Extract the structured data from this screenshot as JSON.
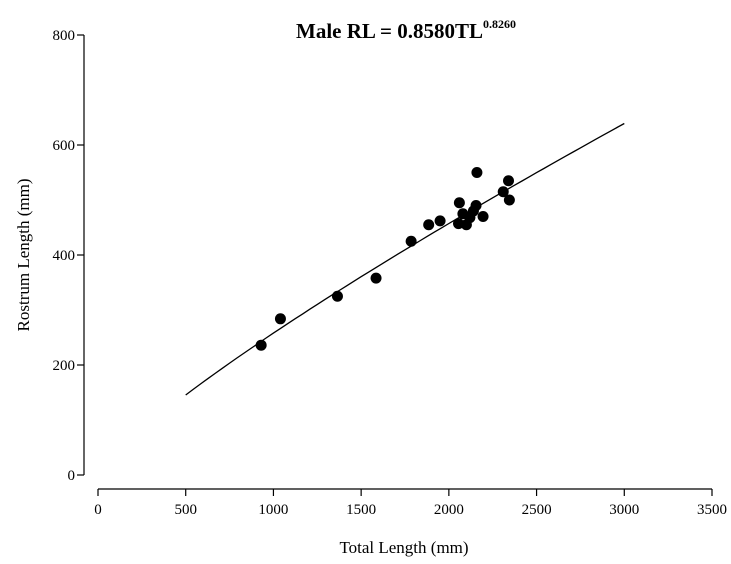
{
  "chart_data": {
    "type": "scatter",
    "title": {
      "main": "Male RL = 0.8580TL",
      "superscript": "0.8260"
    },
    "xlabel": "Total Length (mm)",
    "ylabel": "Rostrum Length (mm)",
    "xlim": [
      0,
      3500
    ],
    "ylim": [
      0,
      800
    ],
    "x_ticks": [
      0,
      500,
      1000,
      1500,
      2000,
      2500,
      3000,
      3500
    ],
    "y_ticks": [
      0,
      200,
      400,
      600,
      800
    ],
    "grid": false,
    "legend": "none",
    "marker_color": "#000000",
    "points": [
      {
        "x": 930,
        "y": 236
      },
      {
        "x": 1040,
        "y": 284
      },
      {
        "x": 1365,
        "y": 325
      },
      {
        "x": 1585,
        "y": 358
      },
      {
        "x": 1785,
        "y": 425
      },
      {
        "x": 1885,
        "y": 455
      },
      {
        "x": 1950,
        "y": 462
      },
      {
        "x": 2055,
        "y": 457
      },
      {
        "x": 2060,
        "y": 495
      },
      {
        "x": 2080,
        "y": 475
      },
      {
        "x": 2100,
        "y": 455
      },
      {
        "x": 2120,
        "y": 468
      },
      {
        "x": 2140,
        "y": 480
      },
      {
        "x": 2155,
        "y": 490
      },
      {
        "x": 2160,
        "y": 550
      },
      {
        "x": 2195,
        "y": 470
      },
      {
        "x": 2310,
        "y": 515
      },
      {
        "x": 2340,
        "y": 535
      },
      {
        "x": 2345,
        "y": 500
      }
    ],
    "fit": {
      "model": "power",
      "a": 0.858,
      "b": 0.826,
      "x_from": 500,
      "x_to": 3000
    }
  }
}
